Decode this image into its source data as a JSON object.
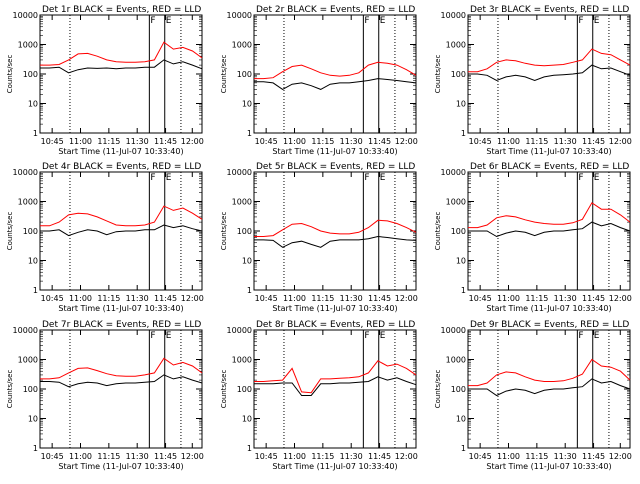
{
  "chart_data": [
    {
      "type": "line",
      "title": "Det 1r BLACK = Events, RED = LLD",
      "xlabel": "Start Time (11-Jul-07 10:33:40)",
      "ylabel": "Counts/sec",
      "yscale": "log",
      "ylim": [
        1,
        10000
      ],
      "x_ticks": [
        "10:45",
        "11:00",
        "11:15",
        "11:30",
        "11:45",
        "12:00"
      ],
      "y_ticks": [
        "1",
        "10",
        "100",
        "1000",
        "10000"
      ],
      "flags": [
        "F",
        "E"
      ],
      "series": [
        {
          "color": "#ff0000",
          "values": [
            200,
            200,
            210,
            300,
            480,
            500,
            400,
            300,
            260,
            250,
            250,
            260,
            300,
            1200,
            700,
            800,
            600,
            350
          ]
        },
        {
          "color": "#000000",
          "values": [
            160,
            160,
            170,
            110,
            140,
            160,
            155,
            160,
            150,
            160,
            160,
            170,
            170,
            300,
            220,
            260,
            200,
            150
          ]
        }
      ]
    },
    {
      "type": "line",
      "title": "Det 2r BLACK = Events, RED = LLD",
      "xlabel": "Start Time (11-Jul-07 10:33:40)",
      "ylabel": "Counts/sec",
      "yscale": "log",
      "ylim": [
        1,
        10000
      ],
      "x_ticks": [
        "10:45",
        "11:00",
        "11:15",
        "11:30",
        "11:45",
        "12:00"
      ],
      "y_ticks": [
        "1",
        "10",
        "100",
        "1000",
        "10000"
      ],
      "flags": [
        "F",
        "E"
      ],
      "series": [
        {
          "color": "#ff0000",
          "values": [
            70,
            70,
            75,
            120,
            180,
            200,
            150,
            110,
            90,
            85,
            90,
            110,
            200,
            250,
            230,
            200,
            140,
            90
          ]
        },
        {
          "color": "#000000",
          "values": [
            55,
            55,
            50,
            30,
            45,
            50,
            40,
            30,
            45,
            50,
            50,
            55,
            60,
            70,
            65,
            60,
            55,
            50
          ]
        }
      ]
    },
    {
      "type": "line",
      "title": "Det 3r BLACK = Events, RED = LLD",
      "xlabel": "Start Time (11-Jul-07 10:33:40)",
      "ylabel": "Counts/sec",
      "yscale": "log",
      "ylim": [
        1,
        10000
      ],
      "x_ticks": [
        "10:45",
        "11:00",
        "11:15",
        "11:30",
        "11:45",
        "12:00"
      ],
      "y_ticks": [
        "1",
        "10",
        "100",
        "1000",
        "10000"
      ],
      "flags": [
        "F",
        "E"
      ],
      "series": [
        {
          "color": "#ff0000",
          "values": [
            120,
            120,
            150,
            250,
            300,
            280,
            230,
            200,
            190,
            200,
            210,
            250,
            300,
            700,
            500,
            450,
            300,
            200
          ]
        },
        {
          "color": "#000000",
          "values": [
            100,
            100,
            90,
            60,
            80,
            90,
            80,
            60,
            80,
            90,
            95,
            100,
            110,
            200,
            150,
            160,
            120,
            90
          ]
        }
      ]
    },
    {
      "type": "line",
      "title": "Det 4r BLACK = Events, RED = LLD",
      "xlabel": "Start Time (11-Jul-07 10:33:40)",
      "ylabel": "Counts/sec",
      "yscale": "log",
      "ylim": [
        1,
        10000
      ],
      "x_ticks": [
        "10:45",
        "11:00",
        "11:15",
        "11:30",
        "11:45",
        "12:00"
      ],
      "y_ticks": [
        "1",
        "10",
        "100",
        "1000",
        "10000"
      ],
      "flags": [
        "F",
        "E"
      ],
      "series": [
        {
          "color": "#ff0000",
          "values": [
            150,
            150,
            200,
            350,
            400,
            380,
            300,
            220,
            160,
            150,
            150,
            160,
            200,
            700,
            500,
            600,
            400,
            250
          ]
        },
        {
          "color": "#000000",
          "values": [
            100,
            100,
            110,
            70,
            90,
            110,
            100,
            75,
            95,
            100,
            100,
            110,
            110,
            160,
            130,
            150,
            120,
            100
          ]
        }
      ]
    },
    {
      "type": "line",
      "title": "Det 5r BLACK = Events, RED = LLD",
      "xlabel": "Start Time (11-Jul-07 10:33:40)",
      "ylabel": "Counts/sec",
      "yscale": "log",
      "ylim": [
        1,
        10000
      ],
      "x_ticks": [
        "10:45",
        "11:00",
        "11:15",
        "11:30",
        "11:45",
        "12:00"
      ],
      "y_ticks": [
        "1",
        "10",
        "100",
        "1000",
        "10000"
      ],
      "flags": [
        "F",
        "E"
      ],
      "series": [
        {
          "color": "#ff0000",
          "values": [
            65,
            65,
            70,
            110,
            170,
            180,
            140,
            100,
            85,
            80,
            80,
            90,
            130,
            230,
            220,
            180,
            130,
            90
          ]
        },
        {
          "color": "#000000",
          "values": [
            50,
            50,
            48,
            28,
            40,
            45,
            35,
            28,
            45,
            50,
            50,
            50,
            55,
            65,
            60,
            55,
            50,
            48
          ]
        }
      ]
    },
    {
      "type": "line",
      "title": "Det 6r BLACK = Events, RED = LLD",
      "xlabel": "Start Time (11-Jul-07 10:33:40)",
      "ylabel": "Counts/sec",
      "yscale": "log",
      "ylim": [
        1,
        10000
      ],
      "x_ticks": [
        "10:45",
        "11:00",
        "11:15",
        "11:30",
        "11:45",
        "12:00"
      ],
      "y_ticks": [
        "1",
        "10",
        "100",
        "1000",
        "10000"
      ],
      "flags": [
        "F",
        "E"
      ],
      "series": [
        {
          "color": "#ff0000",
          "values": [
            130,
            130,
            160,
            280,
            330,
            300,
            240,
            200,
            180,
            170,
            170,
            190,
            250,
            900,
            550,
            550,
            350,
            200
          ]
        },
        {
          "color": "#000000",
          "values": [
            100,
            100,
            100,
            65,
            85,
            100,
            90,
            70,
            90,
            100,
            100,
            110,
            120,
            200,
            150,
            180,
            130,
            100
          ]
        }
      ]
    },
    {
      "type": "line",
      "title": "Det 7r BLACK = Events, RED = LLD",
      "xlabel": "Start Time (11-Jul-07 10:33:40)",
      "ylabel": "Counts/sec",
      "yscale": "log",
      "ylim": [
        1,
        10000
      ],
      "x_ticks": [
        "10:45",
        "11:00",
        "11:15",
        "11:30",
        "11:45",
        "12:00"
      ],
      "y_ticks": [
        "1",
        "10",
        "100",
        "1000",
        "10000"
      ],
      "flags": [
        "F",
        "E"
      ],
      "series": [
        {
          "color": "#ff0000",
          "values": [
            220,
            220,
            240,
            350,
            500,
            520,
            420,
            330,
            280,
            270,
            270,
            300,
            350,
            1100,
            650,
            800,
            600,
            350
          ]
        },
        {
          "color": "#000000",
          "values": [
            180,
            180,
            170,
            120,
            150,
            170,
            160,
            130,
            150,
            160,
            160,
            170,
            180,
            300,
            220,
            260,
            200,
            160
          ]
        }
      ]
    },
    {
      "type": "line",
      "title": "Det 8r BLACK = Events, RED = LLD",
      "xlabel": "Start Time (11-Jul-07 10:33:40)",
      "ylabel": "Counts/sec",
      "yscale": "log",
      "ylim": [
        1,
        10000
      ],
      "x_ticks": [
        "10:45",
        "11:00",
        "11:15",
        "11:30",
        "11:45",
        "12:00"
      ],
      "y_ticks": [
        "1",
        "10",
        "100",
        "1000",
        "10000"
      ],
      "flags": [
        "F",
        "E"
      ],
      "series": [
        {
          "color": "#ff0000",
          "values": [
            180,
            180,
            190,
            200,
            500,
            80,
            75,
            220,
            220,
            230,
            240,
            260,
            350,
            900,
            600,
            700,
            500,
            300
          ]
        },
        {
          "color": "#000000",
          "values": [
            150,
            150,
            150,
            160,
            160,
            60,
            60,
            150,
            150,
            160,
            160,
            170,
            180,
            260,
            200,
            240,
            180,
            140
          ]
        }
      ]
    },
    {
      "type": "line",
      "title": "Det 9r BLACK = Events, RED = LLD",
      "xlabel": "Start Time (11-Jul-07 10:33:40)",
      "ylabel": "Counts/sec",
      "yscale": "log",
      "ylim": [
        1,
        10000
      ],
      "x_ticks": [
        "10:45",
        "11:00",
        "11:15",
        "11:30",
        "11:45",
        "12:00"
      ],
      "y_ticks": [
        "1",
        "10",
        "100",
        "1000",
        "10000"
      ],
      "flags": [
        "F",
        "E"
      ],
      "series": [
        {
          "color": "#ff0000",
          "values": [
            130,
            130,
            160,
            300,
            380,
            350,
            260,
            200,
            180,
            180,
            190,
            230,
            320,
            1000,
            600,
            550,
            400,
            200
          ]
        },
        {
          "color": "#000000",
          "values": [
            100,
            100,
            100,
            60,
            85,
            100,
            90,
            70,
            90,
            100,
            100,
            110,
            120,
            220,
            160,
            180,
            130,
            100
          ]
        }
      ]
    }
  ]
}
